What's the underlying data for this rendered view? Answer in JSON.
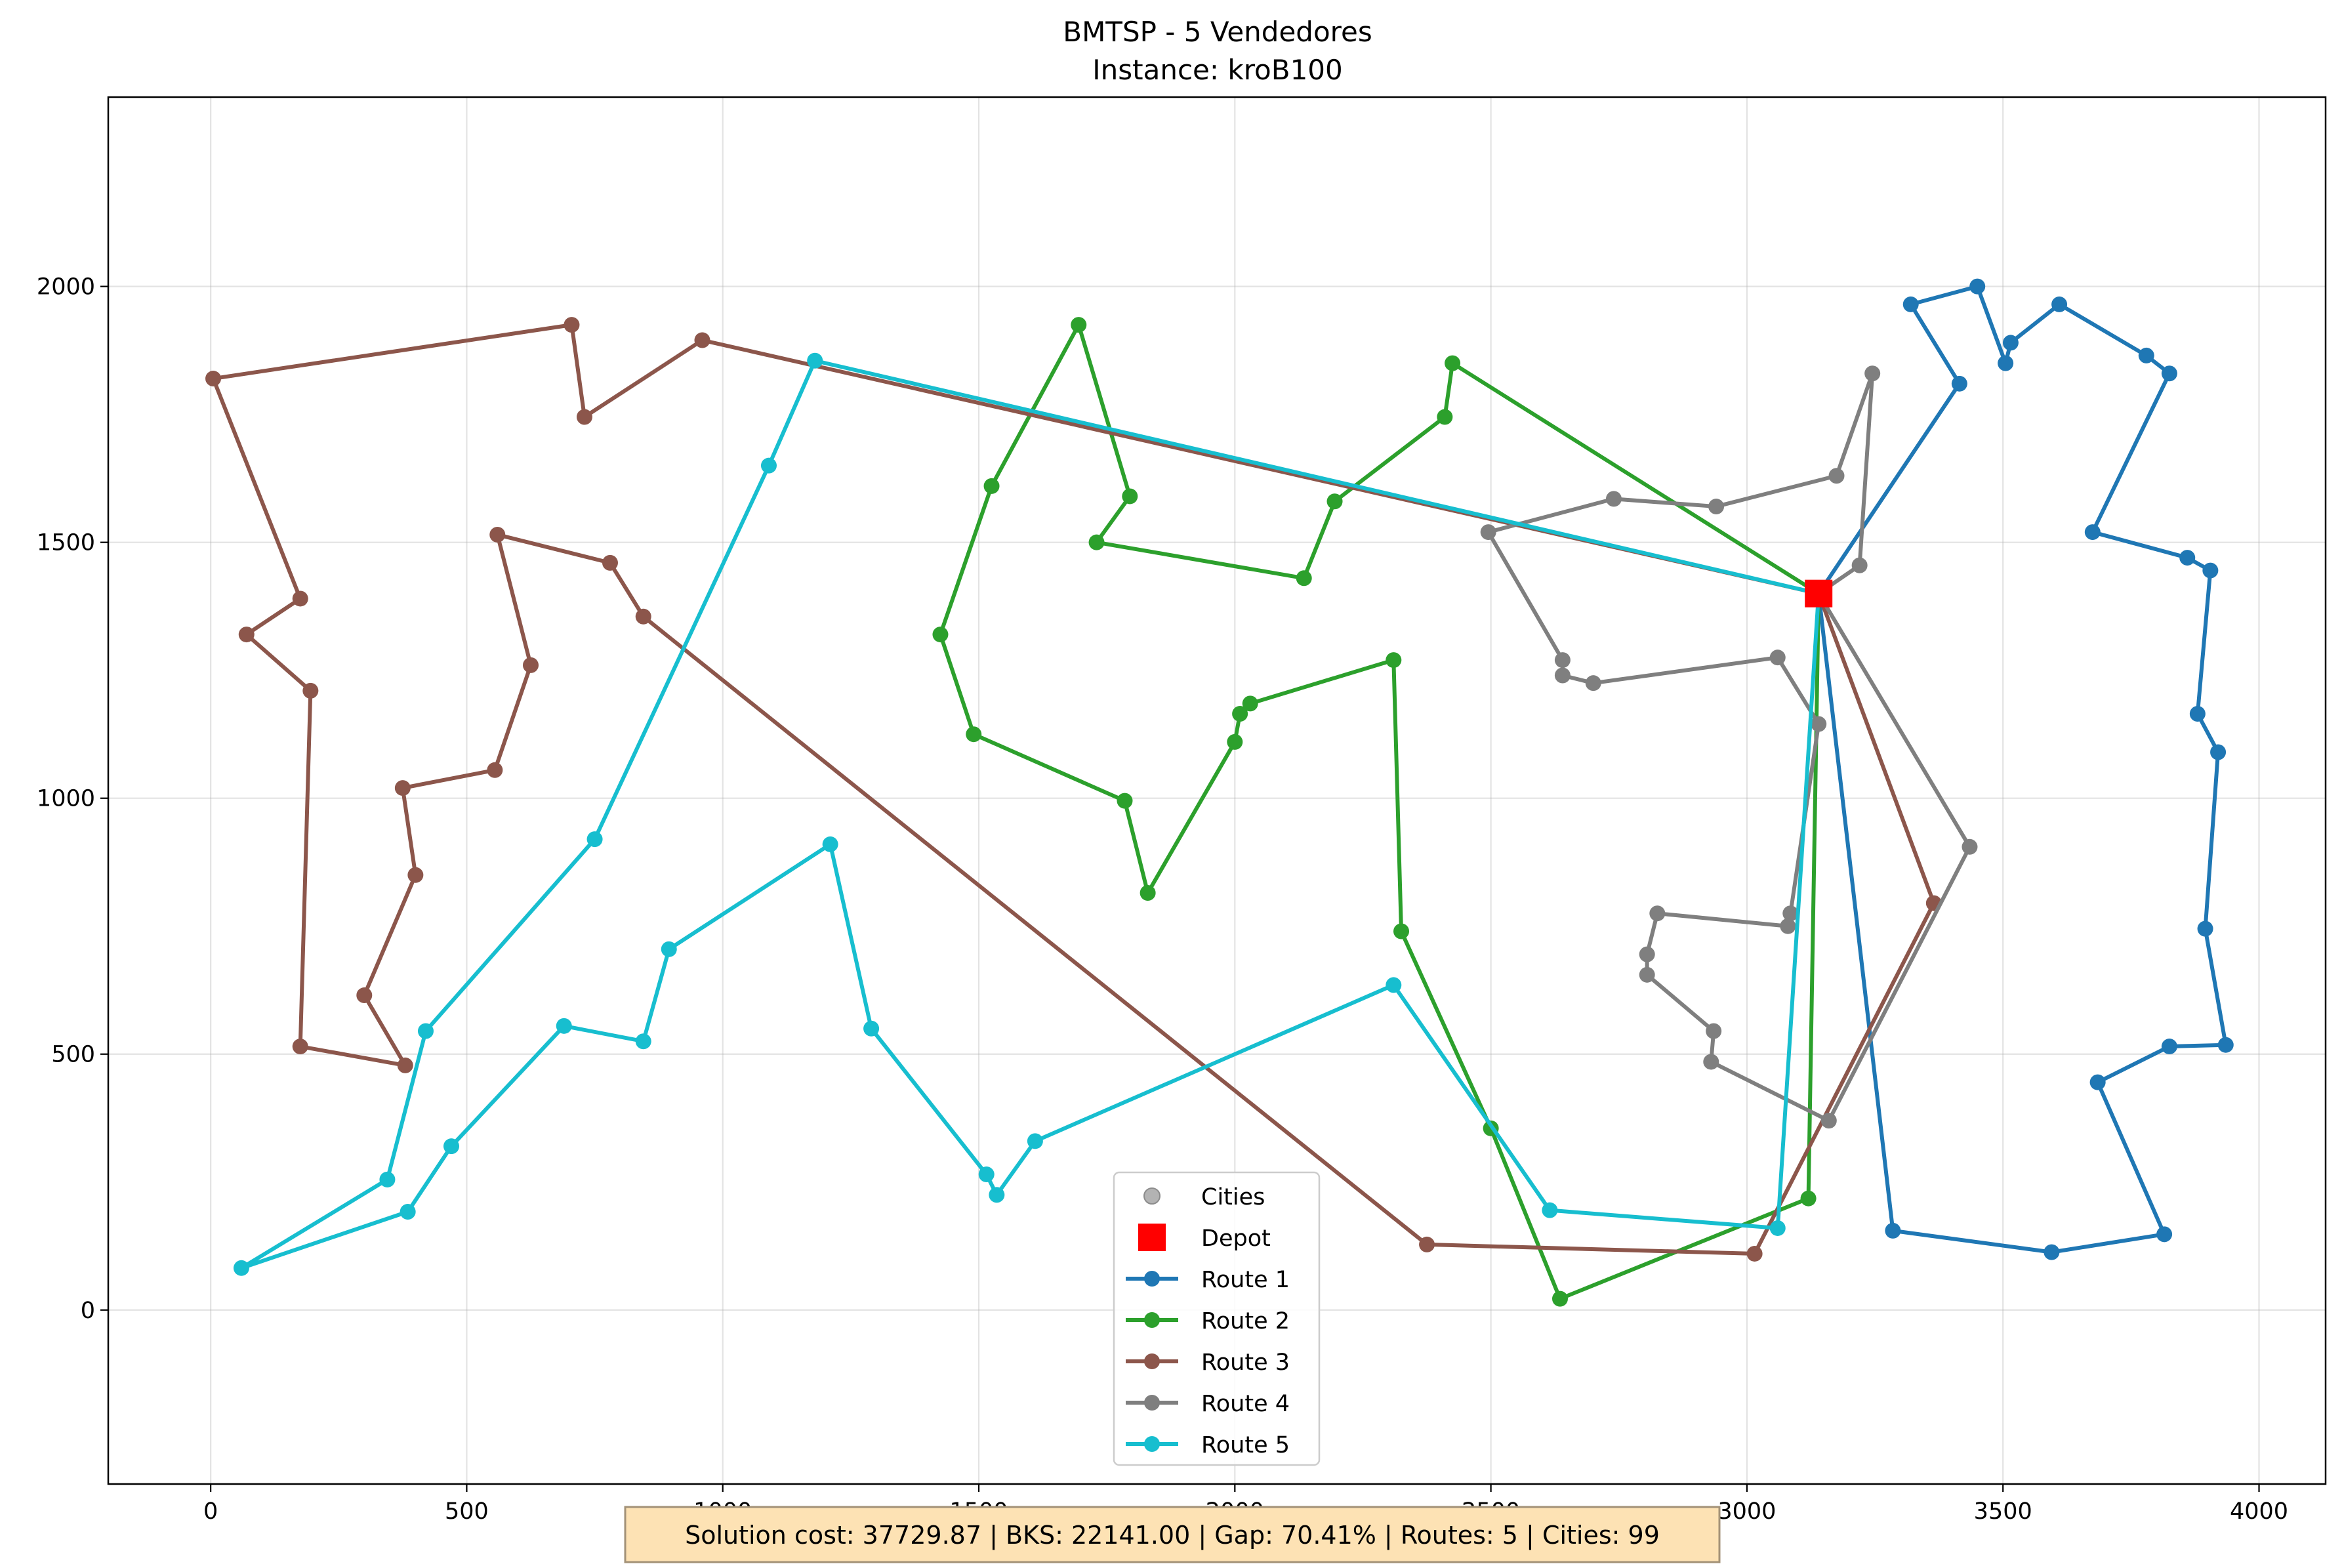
{
  "chart_data": {
    "type": "scatter",
    "title_line1": "BMTSP - 5 Vendedores",
    "title_line2": "Instance: kroB100",
    "xlim": [
      -200,
      4130
    ],
    "ylim": [
      -340,
      2370
    ],
    "x_ticks": [
      0,
      500,
      1000,
      1500,
      2000,
      2500,
      3000,
      3500,
      4000
    ],
    "y_ticks": [
      0,
      500,
      1000,
      1500,
      2000
    ],
    "grid": true,
    "legend_position": "bottom-center",
    "depot": {
      "name": "Depot",
      "x": 3140,
      "y": 1400,
      "color": "#ff0000"
    },
    "cities_label": "Cities",
    "series": [
      {
        "name": "Route 1",
        "color": "#1f77b4",
        "points": [
          [
            3140,
            1400
          ],
          [
            3415,
            1810
          ],
          [
            3320,
            1965
          ],
          [
            3450,
            2000
          ],
          [
            3505,
            1850
          ],
          [
            3515,
            1890
          ],
          [
            3610,
            1965
          ],
          [
            3780,
            1865
          ],
          [
            3825,
            1830
          ],
          [
            3675,
            1520
          ],
          [
            3860,
            1470
          ],
          [
            3905,
            1445
          ],
          [
            3880,
            1165
          ],
          [
            3920,
            1090
          ],
          [
            3895,
            745
          ],
          [
            3935,
            518
          ],
          [
            3825,
            515
          ],
          [
            3685,
            445
          ],
          [
            3815,
            148
          ],
          [
            3595,
            113
          ],
          [
            3285,
            155
          ],
          [
            3140,
            1400
          ]
        ]
      },
      {
        "name": "Route 2",
        "color": "#2ca02c",
        "points": [
          [
            3140,
            1400
          ],
          [
            2425,
            1850
          ],
          [
            2410,
            1745
          ],
          [
            2195,
            1580
          ],
          [
            2135,
            1430
          ],
          [
            1730,
            1500
          ],
          [
            1795,
            1590
          ],
          [
            1695,
            1925
          ],
          [
            1525,
            1610
          ],
          [
            1425,
            1320
          ],
          [
            1490,
            1125
          ],
          [
            1785,
            995
          ],
          [
            1830,
            815
          ],
          [
            2000,
            1110
          ],
          [
            2010,
            1165
          ],
          [
            2030,
            1185
          ],
          [
            2310,
            1270
          ],
          [
            2325,
            740
          ],
          [
            2500,
            355
          ],
          [
            2635,
            22
          ],
          [
            3120,
            218
          ],
          [
            3140,
            1400
          ]
        ]
      },
      {
        "name": "Route 3",
        "color": "#8c564b",
        "points": [
          [
            3140,
            1400
          ],
          [
            3365,
            795
          ],
          [
            3015,
            110
          ],
          [
            2375,
            128
          ],
          [
            845,
            1355
          ],
          [
            780,
            1460
          ],
          [
            560,
            1515
          ],
          [
            625,
            1260
          ],
          [
            555,
            1055
          ],
          [
            375,
            1020
          ],
          [
            400,
            850
          ],
          [
            300,
            615
          ],
          [
            380,
            478
          ],
          [
            175,
            515
          ],
          [
            195,
            1210
          ],
          [
            70,
            1320
          ],
          [
            175,
            1390
          ],
          [
            5,
            1820
          ],
          [
            705,
            1925
          ],
          [
            730,
            1745
          ],
          [
            960,
            1895
          ],
          [
            3140,
            1400
          ]
        ]
      },
      {
        "name": "Route 4",
        "color": "#7f7f7f",
        "points": [
          [
            3140,
            1400
          ],
          [
            3220,
            1455
          ],
          [
            3245,
            1830
          ],
          [
            3175,
            1630
          ],
          [
            2940,
            1570
          ],
          [
            2740,
            1585
          ],
          [
            2495,
            1520
          ],
          [
            2640,
            1270
          ],
          [
            2640,
            1240
          ],
          [
            2700,
            1225
          ],
          [
            3060,
            1275
          ],
          [
            3140,
            1145
          ],
          [
            3085,
            775
          ],
          [
            3080,
            750
          ],
          [
            2825,
            775
          ],
          [
            2805,
            695
          ],
          [
            2805,
            655
          ],
          [
            2935,
            545
          ],
          [
            2930,
            485
          ],
          [
            3160,
            370
          ],
          [
            3435,
            905
          ],
          [
            3140,
            1400
          ]
        ]
      },
      {
        "name": "Route 5",
        "color": "#17becf",
        "points": [
          [
            3140,
            1400
          ],
          [
            1180,
            1855
          ],
          [
            1090,
            1650
          ],
          [
            750,
            920
          ],
          [
            420,
            545
          ],
          [
            345,
            255
          ],
          [
            60,
            82
          ],
          [
            385,
            192
          ],
          [
            470,
            320
          ],
          [
            690,
            555
          ],
          [
            845,
            525
          ],
          [
            895,
            705
          ],
          [
            1210,
            910
          ],
          [
            1290,
            550
          ],
          [
            1515,
            265
          ],
          [
            1535,
            225
          ],
          [
            1610,
            330
          ],
          [
            2310,
            635
          ],
          [
            2615,
            195
          ],
          [
            3060,
            160
          ],
          [
            3140,
            1400
          ]
        ]
      }
    ],
    "annotation": "Solution cost: 37729.87 | BKS: 22141.00 | Gap: 70.41% | Routes: 5 | Cities: 99"
  }
}
